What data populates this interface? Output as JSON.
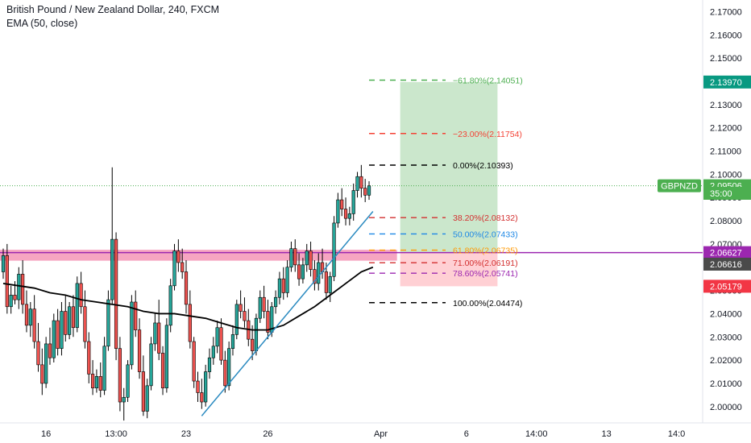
{
  "header": {
    "title": "British Pound / New Zealand Dollar, 240, FXCM",
    "indicator": "EMA (50, close)"
  },
  "colors": {
    "up": "#26a69a",
    "down": "#ef5350",
    "ema": "#000000",
    "trendline": "#2a8ac0",
    "zone": "#f48fb1",
    "magenta_line": "#9c27b0",
    "price_line": "#4caf50",
    "profit": "#c8e6c9",
    "loss": "#ffcdd2"
  },
  "chart_data": {
    "type": "candlestick",
    "ylim": [
      1.993,
      2.175
    ],
    "y_ticks": [
      "2.17000",
      "2.16000",
      "2.15000",
      "2.14000",
      "2.13000",
      "2.12000",
      "2.11000",
      "2.10000",
      "2.09000",
      "2.08000",
      "2.07000",
      "2.06000",
      "2.05000",
      "2.04000",
      "2.03000",
      "2.02000",
      "2.01000",
      "2.00000"
    ],
    "x_ticks": [
      {
        "label": "16",
        "bar": 11
      },
      {
        "label": "13:00",
        "bar": 29
      },
      {
        "label": "23",
        "bar": 47
      },
      {
        "label": "26",
        "bar": 68
      },
      {
        "label": "Apr",
        "bar": 97
      },
      {
        "label": "6",
        "bar": 119
      },
      {
        "label": "14:00",
        "bar": 137
      },
      {
        "label": "13",
        "bar": 155
      },
      {
        "label": "14:0",
        "bar": 173
      }
    ],
    "candles": [
      [
        2.058,
        2.068,
        2.055,
        2.065
      ],
      [
        2.065,
        2.07,
        2.04,
        2.043
      ],
      [
        2.043,
        2.052,
        2.04,
        2.048
      ],
      [
        2.048,
        2.054,
        2.044,
        2.046
      ],
      [
        2.046,
        2.06,
        2.042,
        2.057
      ],
      [
        2.057,
        2.063,
        2.04,
        2.044
      ],
      [
        2.044,
        2.05,
        2.032,
        2.035
      ],
      [
        2.035,
        2.045,
        2.03,
        2.042
      ],
      [
        2.042,
        2.048,
        2.025,
        2.028
      ],
      [
        2.028,
        2.036,
        2.015,
        2.018
      ],
      [
        2.018,
        2.025,
        2.005,
        2.01
      ],
      [
        2.01,
        2.03,
        2.008,
        2.027
      ],
      [
        2.027,
        2.034,
        2.018,
        2.021
      ],
      [
        2.021,
        2.04,
        2.019,
        2.037
      ],
      [
        2.037,
        2.042,
        2.022,
        2.025
      ],
      [
        2.025,
        2.045,
        2.022,
        2.041
      ],
      [
        2.041,
        2.048,
        2.028,
        2.031
      ],
      [
        2.031,
        2.045,
        2.029,
        2.043
      ],
      [
        2.043,
        2.048,
        2.03,
        2.034
      ],
      [
        2.034,
        2.056,
        2.032,
        2.053
      ],
      [
        2.053,
        2.058,
        2.04,
        2.043
      ],
      [
        2.043,
        2.05,
        2.025,
        2.028
      ],
      [
        2.028,
        2.032,
        2.01,
        2.014
      ],
      [
        2.014,
        2.02,
        2.005,
        2.008
      ],
      [
        2.008,
        2.016,
        2.006,
        2.013
      ],
      [
        2.013,
        2.019,
        2.004,
        2.007
      ],
      [
        2.007,
        2.03,
        2.005,
        2.026
      ],
      [
        2.026,
        2.05,
        2.024,
        2.046
      ],
      [
        2.046,
        2.103,
        2.044,
        2.072
      ],
      [
        2.072,
        2.075,
        2.02,
        2.025
      ],
      [
        2.025,
        2.03,
        1.998,
        2.002
      ],
      [
        2.002,
        2.008,
        1.994,
        2.004
      ],
      [
        2.004,
        2.02,
        2.002,
        2.018
      ],
      [
        2.018,
        2.048,
        2.016,
        2.045
      ],
      [
        2.045,
        2.05,
        2.03,
        2.033
      ],
      [
        2.033,
        2.038,
        2.012,
        2.015
      ],
      [
        2.015,
        2.022,
        1.996,
        1.998
      ],
      [
        1.998,
        2.012,
        1.995,
        2.009
      ],
      [
        2.009,
        2.03,
        2.007,
        2.027
      ],
      [
        2.027,
        2.04,
        2.024,
        2.036
      ],
      [
        2.036,
        2.046,
        2.02,
        2.023
      ],
      [
        2.023,
        2.026,
        2.005,
        2.008
      ],
      [
        2.008,
        2.038,
        2.006,
        2.035
      ],
      [
        2.035,
        2.055,
        2.032,
        2.052
      ],
      [
        2.052,
        2.07,
        2.05,
        2.067
      ],
      [
        2.067,
        2.072,
        2.058,
        2.062
      ],
      [
        2.062,
        2.068,
        2.055,
        2.058
      ],
      [
        2.058,
        2.063,
        2.04,
        2.044
      ],
      [
        2.044,
        2.05,
        2.025,
        2.028
      ],
      [
        2.028,
        2.03,
        2.008,
        2.011
      ],
      [
        2.011,
        2.015,
        2.002,
        2.006
      ],
      [
        2.006,
        2.012,
        1.999,
        2.002
      ],
      [
        2.002,
        2.018,
        2.0,
        2.015
      ],
      [
        2.015,
        2.025,
        2.012,
        2.021
      ],
      [
        2.021,
        2.03,
        2.018,
        2.026
      ],
      [
        2.026,
        2.037,
        2.023,
        2.034
      ],
      [
        2.034,
        2.038,
        2.018,
        2.02
      ],
      [
        2.02,
        2.024,
        2.006,
        2.009
      ],
      [
        2.009,
        2.028,
        2.007,
        2.025
      ],
      [
        2.025,
        2.035,
        2.022,
        2.031
      ],
      [
        2.031,
        2.046,
        2.029,
        2.044
      ],
      [
        2.044,
        2.05,
        2.038,
        2.041
      ],
      [
        2.041,
        2.047,
        2.034,
        2.037
      ],
      [
        2.037,
        2.042,
        2.026,
        2.029
      ],
      [
        2.029,
        2.035,
        2.02,
        2.024
      ],
      [
        2.024,
        2.04,
        2.022,
        2.038
      ],
      [
        2.038,
        2.05,
        2.036,
        2.047
      ],
      [
        2.047,
        2.052,
        2.038,
        2.041
      ],
      [
        2.041,
        2.046,
        2.029,
        2.032
      ],
      [
        2.032,
        2.045,
        2.03,
        2.043
      ],
      [
        2.043,
        2.05,
        2.04,
        2.047
      ],
      [
        2.047,
        2.058,
        2.044,
        2.055
      ],
      [
        2.055,
        2.06,
        2.046,
        2.049
      ],
      [
        2.049,
        2.063,
        2.047,
        2.06
      ],
      [
        2.06,
        2.071,
        2.058,
        2.068
      ],
      [
        2.068,
        2.072,
        2.058,
        2.061
      ],
      [
        2.061,
        2.066,
        2.052,
        2.055
      ],
      [
        2.055,
        2.064,
        2.053,
        2.061
      ],
      [
        2.061,
        2.07,
        2.058,
        2.067
      ],
      [
        2.067,
        2.071,
        2.056,
        2.059
      ],
      [
        2.059,
        2.063,
        2.05,
        2.053
      ],
      [
        2.053,
        2.066,
        2.05,
        2.062
      ],
      [
        2.062,
        2.068,
        2.055,
        2.058
      ],
      [
        2.058,
        2.062,
        2.046,
        2.049
      ],
      [
        2.049,
        2.058,
        2.045,
        2.056
      ],
      [
        2.056,
        2.082,
        2.054,
        2.079
      ],
      [
        2.079,
        2.092,
        2.077,
        2.089
      ],
      [
        2.089,
        2.094,
        2.082,
        2.085
      ],
      [
        2.085,
        2.09,
        2.078,
        2.081
      ],
      [
        2.081,
        2.086,
        2.078,
        2.083
      ],
      [
        2.083,
        2.096,
        2.08,
        2.093
      ],
      [
        2.093,
        2.101,
        2.09,
        2.099
      ],
      [
        2.099,
        2.104,
        2.09,
        2.094
      ],
      [
        2.094,
        2.098,
        2.088,
        2.091
      ],
      [
        2.091,
        2.097,
        2.089,
        2.095
      ]
    ],
    "ema": [
      [
        0,
        2.053
      ],
      [
        4,
        2.052
      ],
      [
        8,
        2.051
      ],
      [
        12,
        2.049
      ],
      [
        16,
        2.048
      ],
      [
        20,
        2.046
      ],
      [
        24,
        2.045
      ],
      [
        28,
        2.044
      ],
      [
        32,
        2.043
      ],
      [
        36,
        2.041
      ],
      [
        40,
        2.04
      ],
      [
        44,
        2.04
      ],
      [
        48,
        2.039
      ],
      [
        52,
        2.038
      ],
      [
        56,
        2.036
      ],
      [
        60,
        2.034
      ],
      [
        64,
        2.033
      ],
      [
        68,
        2.033
      ],
      [
        72,
        2.035
      ],
      [
        76,
        2.039
      ],
      [
        80,
        2.043
      ],
      [
        84,
        2.048
      ],
      [
        88,
        2.053
      ],
      [
        92,
        2.058
      ],
      [
        95,
        2.06
      ]
    ],
    "trendline": [
      [
        51,
        1.996
      ],
      [
        95,
        2.084
      ]
    ],
    "zone": {
      "top": 2.0675,
      "bottom": 2.0628
    },
    "magenta_price": 2.06627,
    "current_price": 2.09506,
    "position": {
      "start_bar": 102,
      "end_bar": 127,
      "target": 2.1397,
      "entry": 2.06627,
      "stop": 2.05179
    },
    "fib": [
      {
        "label": "−61.80%(2.14051)",
        "price": 2.14051,
        "color": "#4caf50",
        "dashed": true
      },
      {
        "label": "−23.00%(2.11754)",
        "price": 2.11754,
        "color": "#f44336",
        "dashed": true
      },
      {
        "label": "0.00%(2.10393)",
        "price": 2.10393,
        "color": "#000000",
        "dashed": true
      },
      {
        "label": "38.20%(2.08132)",
        "price": 2.08132,
        "color": "#d32f2f",
        "dashed": true
      },
      {
        "label": "50.00%(2.07433)",
        "price": 2.07433,
        "color": "#1e88e5",
        "dashed": true
      },
      {
        "label": "61.80%(2.06735)",
        "price": 2.06735,
        "color": "#ff9800",
        "dashed": true
      },
      {
        "label": "71.00%(2.06191)",
        "price": 2.06191,
        "color": "#d32f2f",
        "dashed": true
      },
      {
        "label": "78.60%(2.05741)",
        "price": 2.05741,
        "color": "#9c27b0",
        "dashed": true
      },
      {
        "label": "100.00%(2.04474)",
        "price": 2.04474,
        "color": "#000000",
        "dashed": true
      }
    ],
    "price_labels": [
      {
        "text": "2.13970",
        "price": 2.1397,
        "bg": "#089981",
        "fg": "#ffffff"
      },
      {
        "text": "GBPNZD",
        "price": 2.09506,
        "bg": "#4caf50",
        "fg": "#ffffff",
        "side": "left"
      },
      {
        "text": "2.09506",
        "price": 2.09506,
        "bg": "#4caf50",
        "fg": "#ffffff"
      },
      {
        "text": "35:00",
        "price": 2.0918,
        "bg": "#4caf50",
        "fg": "#ffffff"
      },
      {
        "text": "2.06627",
        "price": 2.06627,
        "bg": "#9c27b0",
        "fg": "#ffffff"
      },
      {
        "text": "2.06616",
        "price": 2.06616,
        "bg": "#4a4a4a",
        "fg": "#ffffff",
        "offset": 1
      },
      {
        "text": "2.05179",
        "price": 2.05179,
        "bg": "#f23645",
        "fg": "#ffffff"
      }
    ]
  }
}
